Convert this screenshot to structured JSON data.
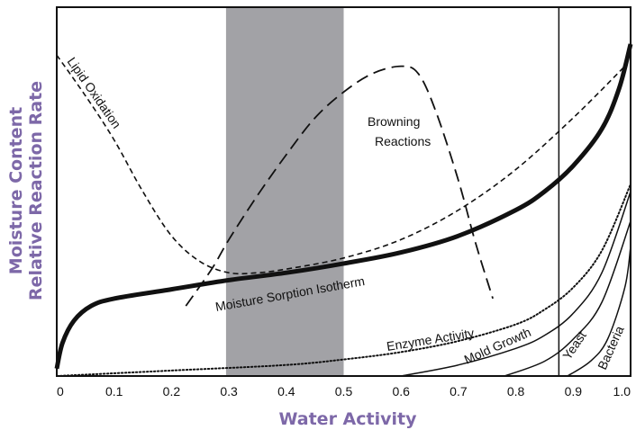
{
  "chart_data": {
    "type": "line",
    "xlabel": "Water Activity",
    "ylabel_lines": [
      "Moisture Content",
      "Relative Reaction Rate"
    ],
    "xlim": [
      0,
      1.0
    ],
    "x_ticks": [
      "0",
      "0.1",
      "0.2",
      "0.3",
      "0.4",
      "0.5",
      "0.6",
      "0.7",
      "0.8",
      "0.9",
      "1.0"
    ],
    "y_ticks_shown": false,
    "grid": false,
    "shaded_region": {
      "x": [
        0.295,
        0.5
      ]
    },
    "vertical_line_x": 0.875,
    "series": [
      {
        "name": "Moisture Sorption Isotherm",
        "style": "thick-solid",
        "points": [
          [
            0,
            0.02
          ],
          [
            0.01,
            0.09
          ],
          [
            0.03,
            0.15
          ],
          [
            0.06,
            0.19
          ],
          [
            0.1,
            0.21
          ],
          [
            0.2,
            0.235
          ],
          [
            0.3,
            0.26
          ],
          [
            0.4,
            0.28
          ],
          [
            0.5,
            0.305
          ],
          [
            0.6,
            0.335
          ],
          [
            0.7,
            0.38
          ],
          [
            0.8,
            0.45
          ],
          [
            0.85,
            0.5
          ],
          [
            0.9,
            0.57
          ],
          [
            0.95,
            0.67
          ],
          [
            0.98,
            0.78
          ],
          [
            1.0,
            0.9
          ]
        ]
      },
      {
        "name": "Lipid Oxidation",
        "style": "short-dash",
        "points": [
          [
            0,
            0.87
          ],
          [
            0.05,
            0.76
          ],
          [
            0.1,
            0.64
          ],
          [
            0.15,
            0.5
          ],
          [
            0.2,
            0.38
          ],
          [
            0.25,
            0.31
          ],
          [
            0.3,
            0.28
          ],
          [
            0.35,
            0.28
          ],
          [
            0.4,
            0.29
          ],
          [
            0.5,
            0.32
          ],
          [
            0.6,
            0.37
          ],
          [
            0.7,
            0.45
          ],
          [
            0.8,
            0.56
          ],
          [
            0.9,
            0.7
          ],
          [
            0.99,
            0.84
          ]
        ]
      },
      {
        "name": "Browning Reactions",
        "style": "long-dash",
        "points": [
          [
            0.225,
            0.19
          ],
          [
            0.27,
            0.29
          ],
          [
            0.3,
            0.37
          ],
          [
            0.35,
            0.49
          ],
          [
            0.4,
            0.6
          ],
          [
            0.45,
            0.7
          ],
          [
            0.5,
            0.77
          ],
          [
            0.55,
            0.82
          ],
          [
            0.6,
            0.84
          ],
          [
            0.63,
            0.82
          ],
          [
            0.66,
            0.72
          ],
          [
            0.7,
            0.53
          ],
          [
            0.73,
            0.36
          ],
          [
            0.76,
            0.21
          ]
        ]
      },
      {
        "name": "Enzyme Activity",
        "style": "dotted",
        "points": [
          [
            0,
            0.0
          ],
          [
            0.2,
            0.015
          ],
          [
            0.4,
            0.03
          ],
          [
            0.5,
            0.045
          ],
          [
            0.6,
            0.065
          ],
          [
            0.7,
            0.095
          ],
          [
            0.8,
            0.14
          ],
          [
            0.85,
            0.18
          ],
          [
            0.9,
            0.24
          ],
          [
            0.95,
            0.34
          ],
          [
            1.0,
            0.52
          ]
        ]
      },
      {
        "name": "Mold Growth",
        "style": "thin-solid",
        "points": [
          [
            0.6,
            0.0
          ],
          [
            0.7,
            0.03
          ],
          [
            0.8,
            0.075
          ],
          [
            0.85,
            0.11
          ],
          [
            0.9,
            0.17
          ],
          [
            0.95,
            0.28
          ],
          [
            1.0,
            0.5
          ]
        ]
      },
      {
        "name": "Yeast",
        "style": "thin-solid",
        "points": [
          [
            0.78,
            0.0
          ],
          [
            0.85,
            0.04
          ],
          [
            0.9,
            0.1
          ],
          [
            0.95,
            0.2
          ],
          [
            1.0,
            0.42
          ]
        ]
      },
      {
        "name": "Bacteria",
        "style": "thin-solid",
        "points": [
          [
            0.89,
            0.0
          ],
          [
            0.93,
            0.04
          ],
          [
            0.96,
            0.1
          ],
          [
            0.99,
            0.24
          ],
          [
            1.0,
            0.35
          ]
        ]
      }
    ]
  }
}
